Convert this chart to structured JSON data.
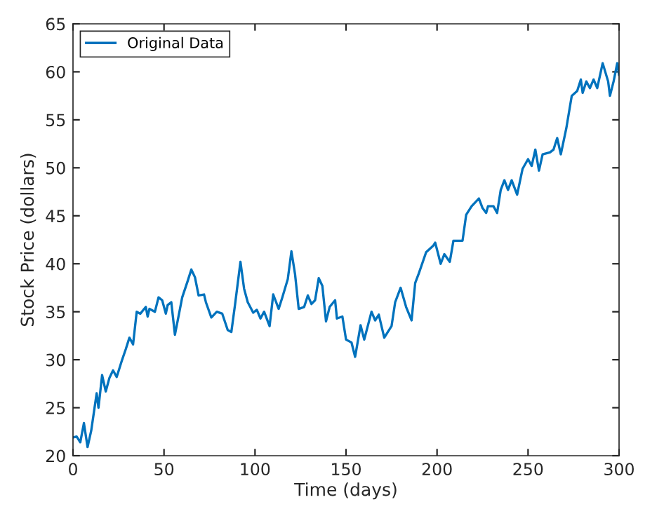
{
  "chart_data": {
    "type": "line",
    "xlabel": "Time (days)",
    "ylabel": "Stock Price (dollars)",
    "xlim": [
      0,
      300
    ],
    "xticks": [
      0,
      50,
      100,
      150,
      200,
      250,
      300
    ],
    "ylim": [
      20,
      65
    ],
    "yticks": [
      20,
      25,
      30,
      35,
      40,
      45,
      50,
      55,
      60,
      65
    ],
    "grid": false,
    "legend": "top left",
    "marker": "none",
    "line_style": "solid",
    "series": [
      {
        "name": "Original Data",
        "color": "#0072bd",
        "x": [
          0,
          2,
          4,
          6,
          8,
          10,
          13,
          14,
          16,
          18,
          20,
          22,
          24,
          27,
          29,
          31,
          33,
          35,
          37,
          40,
          41,
          42,
          45,
          47,
          49,
          51,
          52,
          54,
          56,
          60,
          63,
          65,
          67,
          69,
          72,
          73,
          76,
          79,
          82,
          85,
          87,
          89,
          92,
          94,
          96,
          99,
          101,
          103,
          105,
          108,
          110,
          113,
          115,
          118,
          120,
          122,
          124,
          127,
          129,
          131,
          133,
          135,
          137,
          139,
          141,
          144,
          145,
          148,
          150,
          153,
          155,
          158,
          160,
          164,
          166,
          168,
          171,
          175,
          177,
          180,
          183,
          186,
          188,
          190,
          194,
          198,
          199,
          202,
          204,
          207,
          209,
          214,
          216,
          219,
          223,
          225,
          227,
          228,
          231,
          233,
          235,
          237,
          239,
          241,
          244,
          247,
          250,
          252,
          254,
          256,
          258,
          262,
          264,
          266,
          268,
          271,
          274,
          277,
          279,
          280,
          282,
          284,
          286,
          288,
          291,
          294,
          295,
          297,
          299,
          300
        ],
        "values": [
          21.9,
          22.0,
          21.4,
          23.4,
          20.9,
          22.6,
          26.5,
          25.0,
          28.4,
          26.7,
          28.1,
          28.9,
          28.2,
          30.0,
          31.1,
          32.3,
          31.6,
          35.0,
          34.8,
          35.5,
          34.5,
          35.3,
          35.0,
          36.5,
          36.2,
          34.8,
          35.7,
          36.0,
          32.6,
          36.5,
          38.2,
          39.4,
          38.6,
          36.7,
          36.8,
          36.0,
          34.4,
          35.0,
          34.8,
          33.1,
          32.9,
          35.7,
          40.2,
          37.4,
          36.0,
          34.9,
          35.2,
          34.3,
          35.0,
          33.5,
          36.8,
          35.3,
          36.5,
          38.4,
          41.3,
          38.9,
          35.3,
          35.5,
          36.7,
          35.8,
          36.2,
          38.5,
          37.7,
          34.0,
          35.5,
          36.2,
          34.3,
          34.5,
          32.1,
          31.8,
          30.3,
          33.6,
          32.1,
          35.0,
          34.1,
          34.7,
          32.3,
          33.5,
          36.0,
          37.5,
          35.5,
          34.1,
          38.0,
          39.0,
          41.2,
          41.9,
          42.2,
          40.0,
          41.0,
          40.2,
          42.4,
          42.4,
          45.1,
          46.0,
          46.8,
          45.8,
          45.3,
          46.0,
          46.0,
          45.3,
          47.7,
          48.7,
          47.7,
          48.7,
          47.2,
          49.9,
          50.9,
          50.2,
          51.9,
          49.7,
          51.4,
          51.6,
          51.9,
          53.1,
          51.4,
          54.1,
          57.5,
          58.0,
          59.2,
          57.8,
          59.0,
          58.3,
          59.2,
          58.3,
          60.9,
          59.0,
          57.5,
          59.0,
          60.9,
          59.7
        ]
      }
    ]
  }
}
